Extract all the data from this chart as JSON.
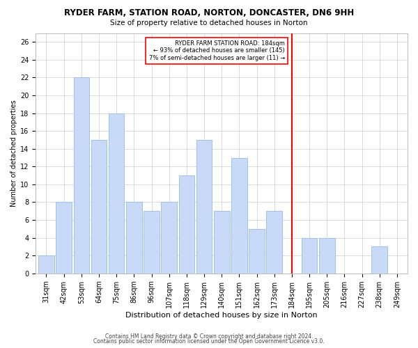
{
  "title": "RYDER FARM, STATION ROAD, NORTON, DONCASTER, DN6 9HH",
  "subtitle": "Size of property relative to detached houses in Norton",
  "xlabel": "Distribution of detached houses by size in Norton",
  "ylabel": "Number of detached properties",
  "footer1": "Contains HM Land Registry data © Crown copyright and database right 2024.",
  "footer2": "Contains public sector information licensed under the Open Government Licence v3.0.",
  "bar_labels": [
    "31sqm",
    "42sqm",
    "53sqm",
    "64sqm",
    "75sqm",
    "86sqm",
    "96sqm",
    "107sqm",
    "118sqm",
    "129sqm",
    "140sqm",
    "151sqm",
    "162sqm",
    "173sqm",
    "184sqm",
    "195sqm",
    "205sqm",
    "216sqm",
    "227sqm",
    "238sqm",
    "249sqm"
  ],
  "bar_values": [
    2,
    8,
    22,
    15,
    18,
    8,
    7,
    8,
    11,
    15,
    7,
    13,
    5,
    7,
    0,
    4,
    4,
    0,
    0,
    3,
    0
  ],
  "bar_color": "#c9daf8",
  "bar_edge_color": "#9fc2e7",
  "marker_index": 14,
  "marker_color": "red",
  "annotation_title": "RYDER FARM STATION ROAD: 184sqm",
  "annotation_line1": "← 93% of detached houses are smaller (145)",
  "annotation_line2": "7% of semi-detached houses are larger (11) →",
  "ylim": [
    0,
    27
  ],
  "yticks": [
    0,
    2,
    4,
    6,
    8,
    10,
    12,
    14,
    16,
    18,
    20,
    22,
    24,
    26
  ],
  "background_color": "#ffffff",
  "grid_color": "#cccccc",
  "title_fontsize": 8.5,
  "subtitle_fontsize": 7.5,
  "xlabel_fontsize": 8,
  "ylabel_fontsize": 7,
  "tick_fontsize": 7,
  "footer_fontsize": 5.5
}
